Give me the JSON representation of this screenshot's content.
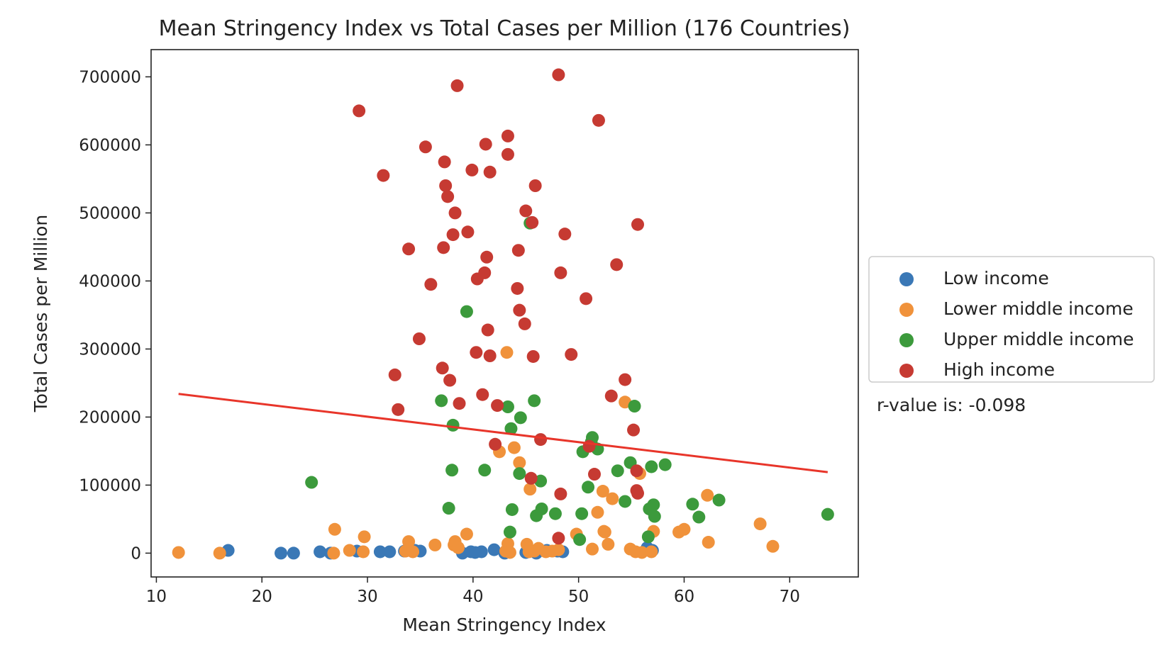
{
  "chart_data": {
    "type": "scatter",
    "title": "Mean Stringency Index vs Total Cases per Million (176 Countries)",
    "xlabel": "Mean Stringency Index",
    "ylabel": "Total Cases per Million",
    "xlim": [
      9.5,
      76.5
    ],
    "ylim": [
      -35000,
      740000
    ],
    "xticks": [
      10,
      20,
      30,
      40,
      50,
      60,
      70
    ],
    "yticks": [
      0,
      100000,
      200000,
      300000,
      400000,
      500000,
      600000,
      700000
    ],
    "grid": false,
    "legend_position": "right",
    "annotation": "r-value is: -0.098",
    "regression_line": {
      "x": [
        12.1,
        73.6
      ],
      "y": [
        234000,
        119000
      ],
      "color": "#e8352a"
    },
    "series": [
      {
        "name": "Low income",
        "color": "#3a78b6",
        "points": [
          [
            16.8,
            4000
          ],
          [
            21.8,
            0
          ],
          [
            23,
            0
          ],
          [
            25.5,
            2000
          ],
          [
            26.5,
            0
          ],
          [
            29,
            3000
          ],
          [
            31.2,
            2000
          ],
          [
            32.1,
            2000
          ],
          [
            33.5,
            3000
          ],
          [
            34.5,
            4000
          ],
          [
            35,
            3000
          ],
          [
            39,
            0
          ],
          [
            39.8,
            2000
          ],
          [
            40.2,
            1000
          ],
          [
            40.8,
            2000
          ],
          [
            42,
            5000
          ],
          [
            43,
            0
          ],
          [
            45,
            1000
          ],
          [
            46,
            0
          ],
          [
            47,
            4000
          ],
          [
            48,
            3000
          ],
          [
            48.5,
            2000
          ],
          [
            56.5,
            8000
          ],
          [
            57,
            4000
          ]
        ]
      },
      {
        "name": "Lower middle income",
        "color": "#f0923b",
        "points": [
          [
            12.1,
            1000
          ],
          [
            16,
            0
          ],
          [
            26.8,
            0
          ],
          [
            26.9,
            35000
          ],
          [
            28.3,
            4000
          ],
          [
            29.6,
            2000
          ],
          [
            29.7,
            24000
          ],
          [
            33.6,
            3000
          ],
          [
            33.9,
            17000
          ],
          [
            34.3,
            2000
          ],
          [
            36.4,
            12000
          ],
          [
            38.2,
            12000
          ],
          [
            38.3,
            17000
          ],
          [
            38.6,
            8000
          ],
          [
            39.4,
            28000
          ],
          [
            42.5,
            149000
          ],
          [
            43.1,
            3000
          ],
          [
            43.2,
            295000
          ],
          [
            43.3,
            14000
          ],
          [
            43.5,
            1000
          ],
          [
            43.9,
            155000
          ],
          [
            44.4,
            133000
          ],
          [
            45.1,
            13000
          ],
          [
            45.3,
            2000
          ],
          [
            45.4,
            94000
          ],
          [
            45.8,
            3000
          ],
          [
            46.2,
            7000
          ],
          [
            46.9,
            2000
          ],
          [
            47.5,
            3000
          ],
          [
            48.1,
            5000
          ],
          [
            49.8,
            28000
          ],
          [
            51.3,
            6000
          ],
          [
            51.8,
            60000
          ],
          [
            52.3,
            91000
          ],
          [
            52.4,
            32000
          ],
          [
            52.5,
            31000
          ],
          [
            52.8,
            13000
          ],
          [
            53.2,
            80000
          ],
          [
            54.4,
            222000
          ],
          [
            54.9,
            6000
          ],
          [
            55.4,
            2000
          ],
          [
            55.8,
            117000
          ],
          [
            56,
            1000
          ],
          [
            56.9,
            2000
          ],
          [
            57.1,
            32000
          ],
          [
            59.5,
            31000
          ],
          [
            60,
            35000
          ],
          [
            62.2,
            85000
          ],
          [
            62.3,
            16000
          ],
          [
            67.2,
            43000
          ],
          [
            68.4,
            10000
          ]
        ]
      },
      {
        "name": "Upper middle income",
        "color": "#3c9a3c",
        "points": [
          [
            24.7,
            104000
          ],
          [
            37,
            224000
          ],
          [
            37.7,
            66000
          ],
          [
            38,
            122000
          ],
          [
            38.1,
            188000
          ],
          [
            39.4,
            355000
          ],
          [
            41.1,
            122000
          ],
          [
            43.3,
            215000
          ],
          [
            43.5,
            31000
          ],
          [
            43.6,
            183000
          ],
          [
            43.7,
            64000
          ],
          [
            44.4,
            117000
          ],
          [
            44.5,
            199000
          ],
          [
            45.4,
            485000
          ],
          [
            45.8,
            224000
          ],
          [
            46,
            55000
          ],
          [
            46.4,
            106000
          ],
          [
            46.5,
            65000
          ],
          [
            47.8,
            58000
          ],
          [
            50.1,
            20000
          ],
          [
            50.3,
            58000
          ],
          [
            50.4,
            149000
          ],
          [
            50.9,
            97000
          ],
          [
            51.2,
            163000
          ],
          [
            51.3,
            170000
          ],
          [
            51.8,
            153000
          ],
          [
            53.7,
            121000
          ],
          [
            54.4,
            76000
          ],
          [
            54.9,
            133000
          ],
          [
            55.3,
            216000
          ],
          [
            56.6,
            24000
          ],
          [
            56.7,
            65000
          ],
          [
            56.9,
            127000
          ],
          [
            57.1,
            71000
          ],
          [
            57.2,
            54000
          ],
          [
            58.2,
            130000
          ],
          [
            60.8,
            72000
          ],
          [
            61.4,
            53000
          ],
          [
            63.3,
            78000
          ],
          [
            73.6,
            57000
          ]
        ]
      },
      {
        "name": "High income",
        "color": "#c63a32",
        "points": [
          [
            29.2,
            650000
          ],
          [
            31.5,
            555000
          ],
          [
            32.6,
            262000
          ],
          [
            32.9,
            211000
          ],
          [
            33.9,
            447000
          ],
          [
            34.9,
            315000
          ],
          [
            35.5,
            597000
          ],
          [
            36,
            395000
          ],
          [
            37.1,
            272000
          ],
          [
            37.2,
            449000
          ],
          [
            37.3,
            575000
          ],
          [
            37.4,
            540000
          ],
          [
            37.6,
            524000
          ],
          [
            37.8,
            254000
          ],
          [
            38.1,
            468000
          ],
          [
            38.3,
            500000
          ],
          [
            38.5,
            687000
          ],
          [
            38.7,
            220000
          ],
          [
            39.5,
            472000
          ],
          [
            39.9,
            563000
          ],
          [
            40.3,
            295000
          ],
          [
            40.4,
            403000
          ],
          [
            40.9,
            233000
          ],
          [
            41.1,
            412000
          ],
          [
            41.2,
            601000
          ],
          [
            41.3,
            435000
          ],
          [
            41.4,
            328000
          ],
          [
            41.6,
            560000
          ],
          [
            41.6,
            290000
          ],
          [
            42.1,
            160000
          ],
          [
            42.3,
            217000
          ],
          [
            43.3,
            613000
          ],
          [
            43.3,
            586000
          ],
          [
            44.2,
            389000
          ],
          [
            44.3,
            445000
          ],
          [
            44.4,
            357000
          ],
          [
            44.9,
            337000
          ],
          [
            45,
            503000
          ],
          [
            45.5,
            110000
          ],
          [
            45.6,
            486000
          ],
          [
            45.7,
            289000
          ],
          [
            45.9,
            540000
          ],
          [
            46.4,
            167000
          ],
          [
            48.1,
            22000
          ],
          [
            48.1,
            703000
          ],
          [
            48.3,
            87000
          ],
          [
            48.3,
            412000
          ],
          [
            48.7,
            469000
          ],
          [
            49.3,
            292000
          ],
          [
            50.7,
            374000
          ],
          [
            51,
            157000
          ],
          [
            51.5,
            116000
          ],
          [
            51.9,
            636000
          ],
          [
            53.1,
            231000
          ],
          [
            53.6,
            424000
          ],
          [
            54.4,
            255000
          ],
          [
            55.2,
            181000
          ],
          [
            55.5,
            121000
          ],
          [
            55.5,
            92000
          ],
          [
            55.6,
            88000
          ],
          [
            55.6,
            483000
          ]
        ]
      }
    ]
  }
}
